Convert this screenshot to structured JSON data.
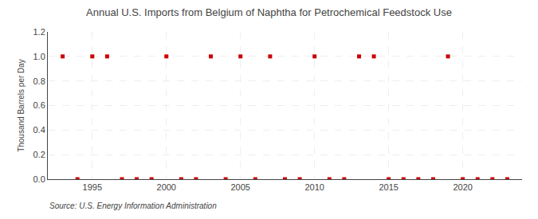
{
  "chart_data": {
    "type": "scatter",
    "title": "Annual U.S. Imports from Belgium of Naphtha for Petrochemical Feedstock Use",
    "ylabel": "Thousand Barrels per Day",
    "source": "Source: U.S. Energy Information Administration",
    "x": [
      1993,
      1994,
      1995,
      1996,
      1997,
      1998,
      1999,
      2000,
      2001,
      2002,
      2003,
      2004,
      2005,
      2006,
      2007,
      2008,
      2009,
      2010,
      2011,
      2012,
      2013,
      2014,
      2015,
      2016,
      2017,
      2018,
      2019,
      2020,
      2021,
      2022,
      2023
    ],
    "values": [
      1,
      0,
      1,
      1,
      0,
      0,
      0,
      1,
      0,
      0,
      1,
      0,
      1,
      0,
      1,
      0,
      0,
      1,
      0,
      0,
      1,
      1,
      0,
      0,
      0,
      0,
      1,
      0,
      0,
      0,
      0
    ],
    "color": "#cc0000",
    "marker": "square",
    "xlim": [
      1992,
      2024
    ],
    "xticks": [
      1995,
      2000,
      2005,
      2010,
      2015,
      2020
    ],
    "ylim": [
      0,
      1.2
    ],
    "yticks": [
      {
        "value": 0.0,
        "label": "0.0"
      },
      0.2,
      0.4,
      0.6,
      0.8,
      {
        "value": 1.0,
        "label": "1.0"
      },
      1.2
    ],
    "grid": true
  }
}
